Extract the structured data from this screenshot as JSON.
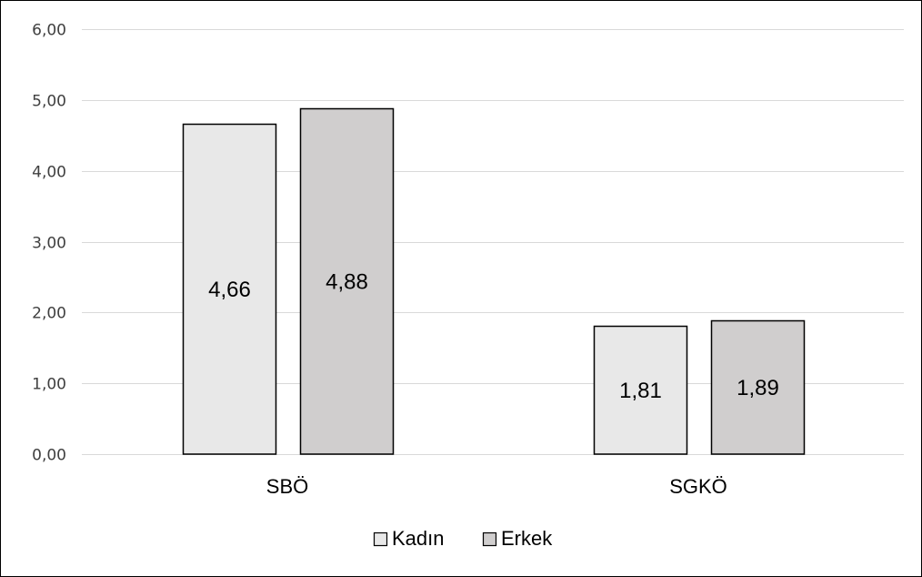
{
  "chart_data": {
    "type": "bar",
    "categories": [
      "SBÖ",
      "SGKÖ"
    ],
    "series": [
      {
        "name": "Kadın",
        "values": [
          4.66,
          1.81
        ],
        "labels": [
          "4,66",
          "1,81"
        ],
        "color": "#e8e8e8"
      },
      {
        "name": "Erkek",
        "values": [
          4.88,
          1.89
        ],
        "labels": [
          "4,88",
          "1,89"
        ],
        "color": "#d0cece"
      }
    ],
    "ylim": [
      0,
      6
    ],
    "yticks": [
      0,
      1,
      2,
      3,
      4,
      5,
      6
    ],
    "ytick_labels": [
      "0,00",
      "1,00",
      "2,00",
      "3,00",
      "4,00",
      "5,00",
      "6,00"
    ],
    "title": "",
    "xlabel": "",
    "ylabel": "",
    "grid": true,
    "legend_position": "bottom",
    "gridline_color": "#d9d9d9",
    "bar_edge_color": "#000000"
  }
}
